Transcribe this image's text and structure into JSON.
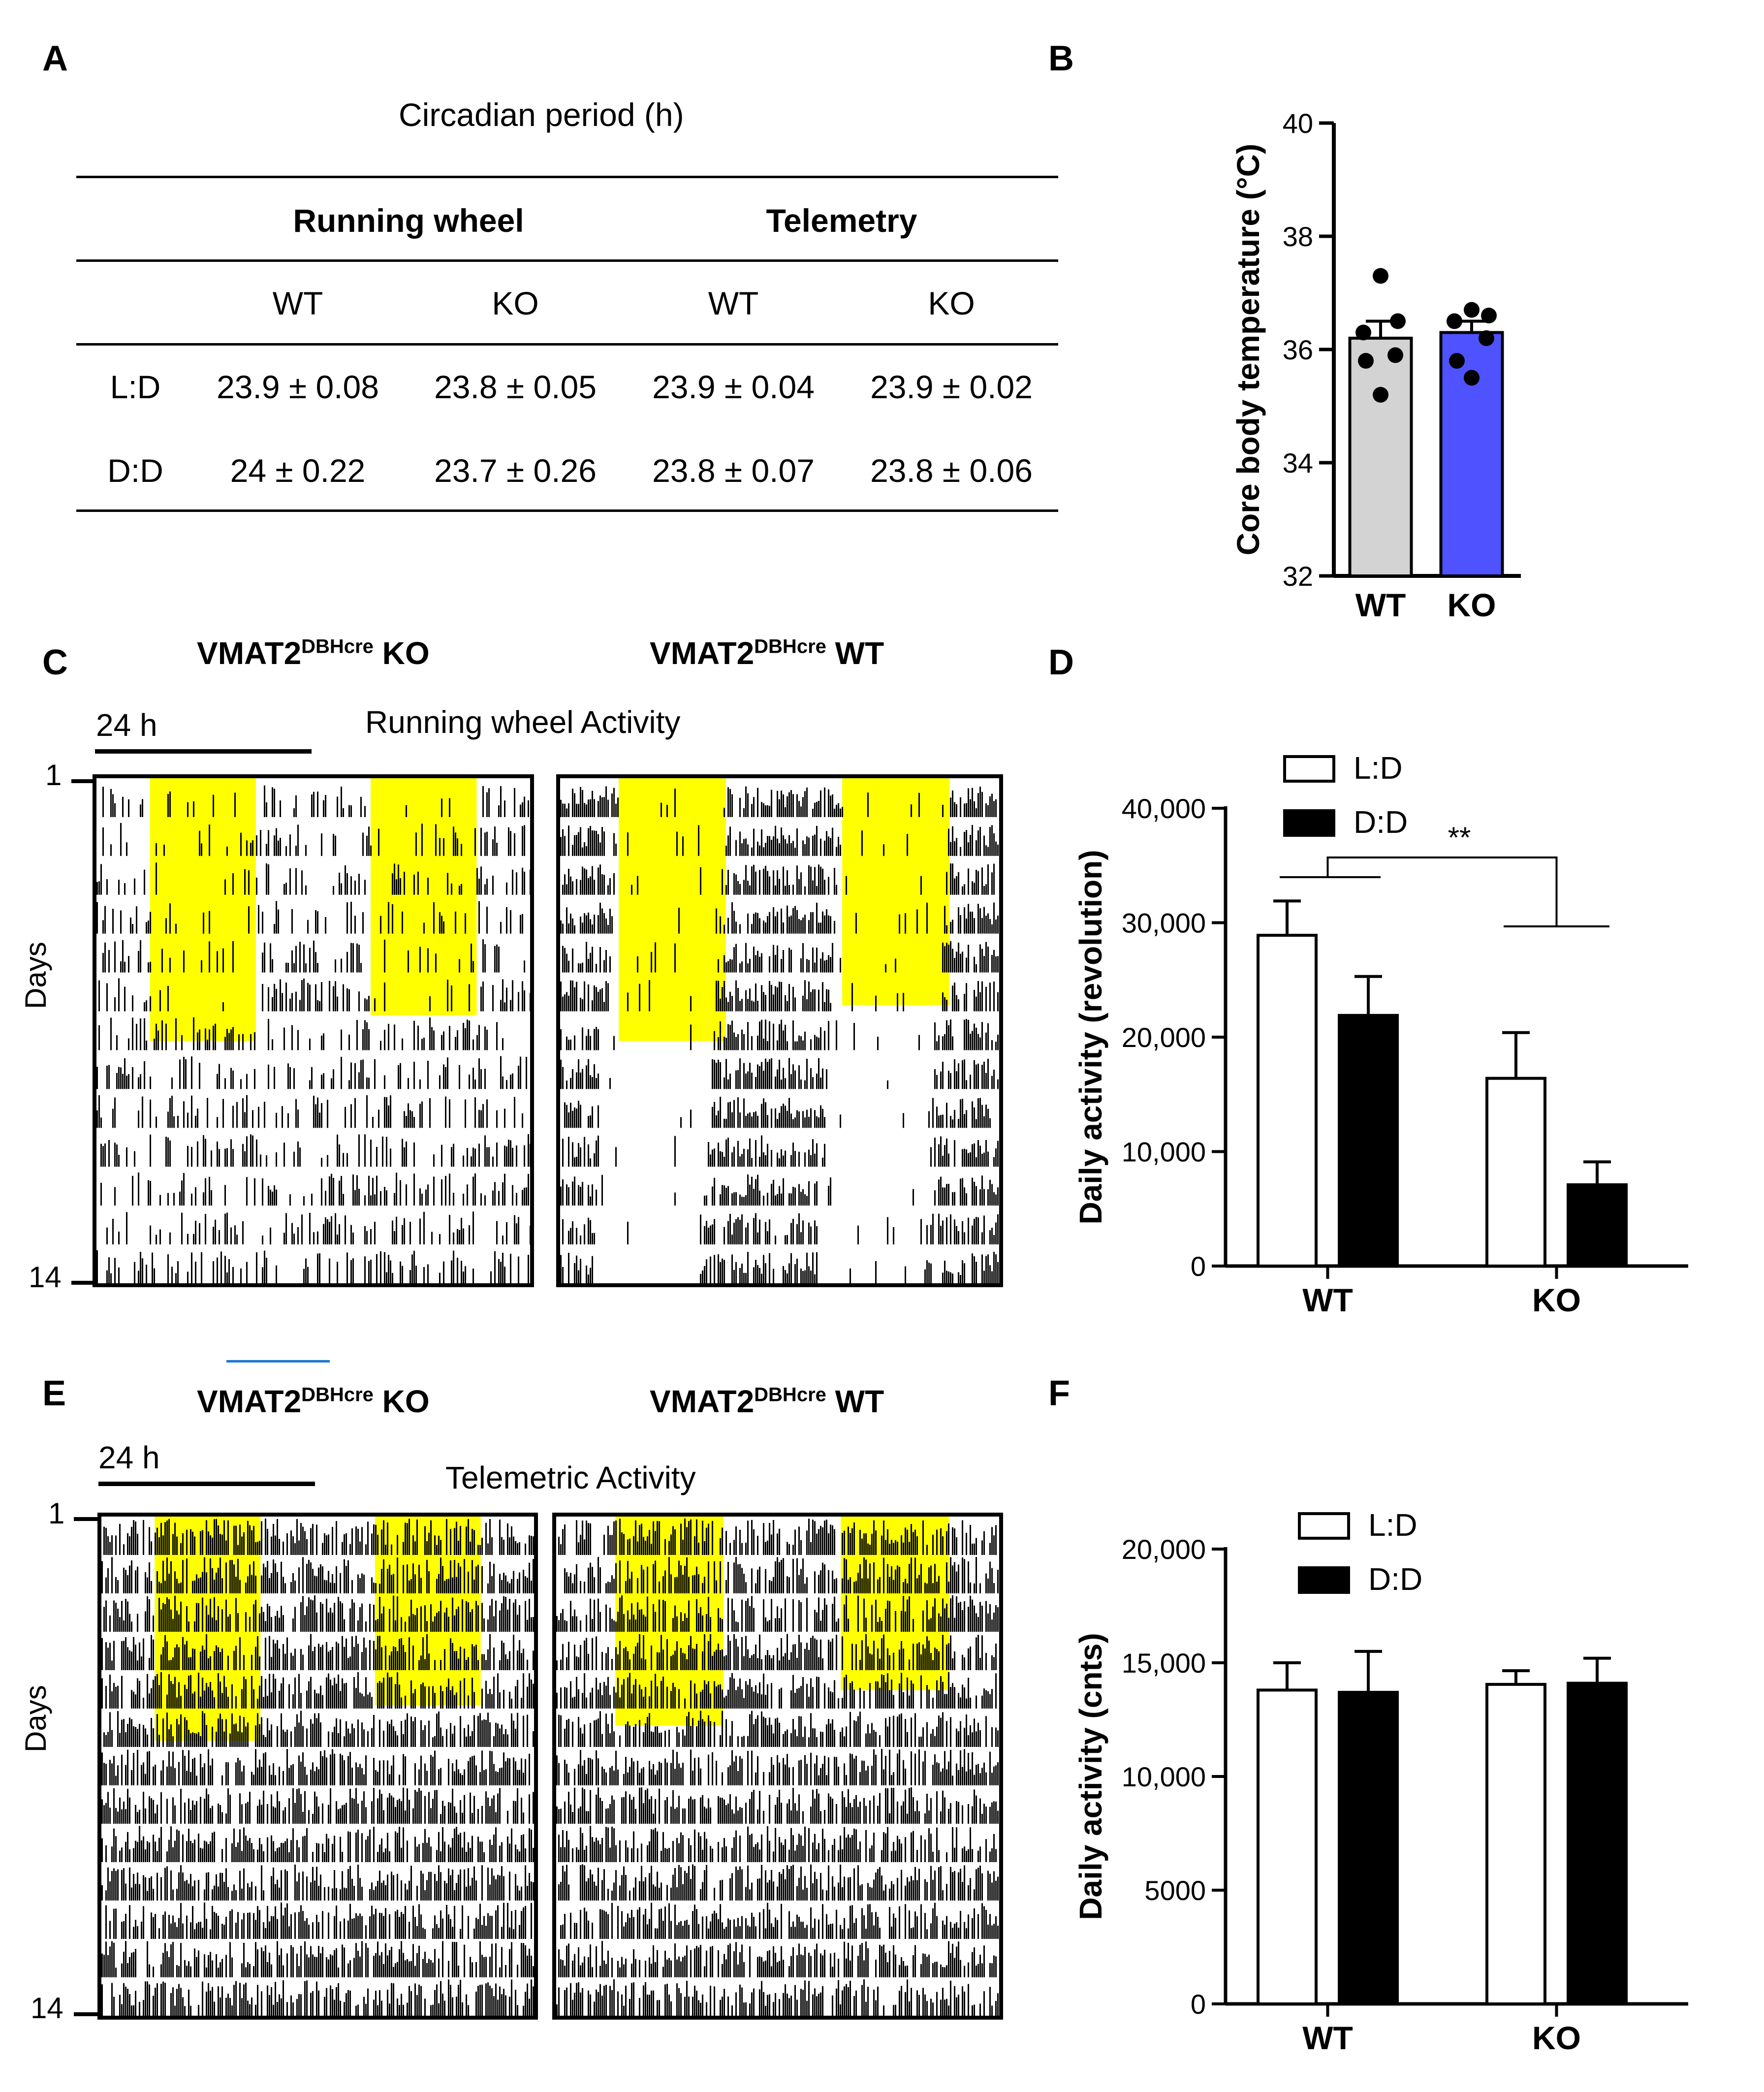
{
  "panels": {
    "A": "A",
    "B": "B",
    "C": "C",
    "D": "D",
    "E": "E",
    "F": "F"
  },
  "table": {
    "title": "Circadian period (h)",
    "group_headers": [
      "Running wheel",
      "Telemetry"
    ],
    "sub_headers": [
      "WT",
      "KO",
      "WT",
      "KO"
    ],
    "rows": [
      {
        "label": "L:D",
        "values": [
          "23.9 ± 0.08",
          "23.8 ± 0.05",
          "23.9 ± 0.04",
          "23.9 ± 0.02"
        ]
      },
      {
        "label": "D:D",
        "values": [
          "24 ± 0.22",
          "23.7 ± 0.26",
          "23.8 ± 0.07",
          "23.8 ± 0.06"
        ]
      }
    ]
  },
  "actograms": {
    "C": {
      "title": "Running wheel Activity",
      "scale_label": "24 h",
      "ylabel": "Days",
      "day_start": "1",
      "day_end": "14",
      "left_label_main": "VMAT2",
      "left_label_sup": "DBHcre",
      "left_label_suffix": " KO",
      "right_label_main": "VMAT2",
      "right_label_sup": "DBHcre",
      "right_label_suffix": " WT"
    },
    "E": {
      "title": "Telemetric Activity",
      "scale_label": "24 h",
      "ylabel": "Days",
      "day_start": "1",
      "day_end": "14",
      "left_label_main": "VMAT2",
      "left_label_sup": "DBHcre",
      "left_label_suffix": " KO",
      "right_label_main": "VMAT2",
      "right_label_sup": "DBHcre",
      "right_label_suffix": " WT"
    }
  },
  "colors": {
    "light": "#ffff00",
    "ko_bar": "#4f52ff",
    "wt_bar": "#d3d3d3",
    "black": "#000000",
    "blue_line": "#1f77d4"
  },
  "chart_data": [
    {
      "id": "B",
      "type": "bar",
      "categories": [
        "WT",
        "KO"
      ],
      "values": [
        36.2,
        36.3
      ],
      "errors": [
        0.3,
        0.2
      ],
      "points": [
        [
          37.3,
          36.5,
          36.3,
          35.9,
          35.8,
          35.2
        ],
        [
          36.7,
          36.6,
          36.5,
          36.2,
          35.8,
          35.5
        ]
      ],
      "bar_colors": [
        "#d3d3d3",
        "#4f52ff"
      ],
      "ylabel": "Core body temperature (°C)",
      "ylim": [
        32,
        40
      ],
      "yticks": [
        32,
        34,
        36,
        38,
        40
      ],
      "ytick_labels": [
        "32",
        "34",
        "36",
        "38",
        "40"
      ]
    },
    {
      "id": "D",
      "type": "bar",
      "categories": [
        "WT",
        "KO"
      ],
      "series": [
        {
          "name": "L:D",
          "values": [
            28900,
            16400
          ],
          "errors": [
            3000,
            4000
          ],
          "color": "#ffffff"
        },
        {
          "name": "D:D",
          "values": [
            21900,
            7100
          ],
          "errors": [
            3400,
            2000
          ],
          "color": "#000000"
        }
      ],
      "ylabel": "Daily activity (revolution)",
      "ylim": [
        0,
        40000
      ],
      "yticks": [
        0,
        10000,
        20000,
        30000,
        40000
      ],
      "ytick_labels": [
        "0",
        "10,000",
        "20,000",
        "30,000",
        "40,000"
      ],
      "annotation": "**",
      "legend": "top-left"
    },
    {
      "id": "F",
      "type": "bar",
      "categories": [
        "WT",
        "KO"
      ],
      "series": [
        {
          "name": "L:D",
          "values": [
            13800,
            14050
          ],
          "errors": [
            1200,
            600
          ],
          "color": "#ffffff"
        },
        {
          "name": "D:D",
          "values": [
            13700,
            14100
          ],
          "errors": [
            1800,
            1100
          ],
          "color": "#000000"
        }
      ],
      "ylabel": "Daily activity (cnts)",
      "ylim": [
        0,
        20000
      ],
      "yticks": [
        0,
        5000,
        10000,
        15000,
        20000
      ],
      "ytick_labels": [
        "0",
        "5000",
        "10,000",
        "15,000",
        "20,000"
      ],
      "legend": "top-left"
    }
  ]
}
